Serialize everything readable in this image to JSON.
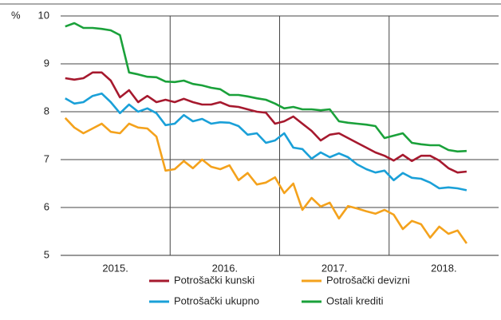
{
  "chart_data": {
    "type": "line",
    "y_unit": "%",
    "xlim": [
      2015,
      2019
    ],
    "xticks": [
      {
        "value": 2015.5,
        "label": "2015."
      },
      {
        "value": 2016.5,
        "label": "2016."
      },
      {
        "value": 2017.5,
        "label": "2017."
      },
      {
        "value": 2018.5,
        "label": "2018."
      }
    ],
    "xgrid": [
      2016,
      2017,
      2018
    ],
    "ylim": [
      5,
      10
    ],
    "yticks": [
      5,
      6,
      7,
      8,
      9,
      10
    ],
    "grid": true,
    "x": [
      2015.042,
      2015.125,
      2015.208,
      2015.292,
      2015.375,
      2015.458,
      2015.542,
      2015.625,
      2015.708,
      2015.792,
      2015.875,
      2015.958,
      2016.042,
      2016.125,
      2016.208,
      2016.292,
      2016.375,
      2016.458,
      2016.542,
      2016.625,
      2016.708,
      2016.792,
      2016.875,
      2016.958,
      2017.042,
      2017.125,
      2017.208,
      2017.292,
      2017.375,
      2017.458,
      2017.542,
      2017.625,
      2017.708,
      2017.792,
      2017.875,
      2017.958,
      2018.042,
      2018.125,
      2018.208,
      2018.292,
      2018.375,
      2018.458,
      2018.542,
      2018.625,
      2018.708
    ],
    "series": [
      {
        "name": "Potrošački kunski",
        "color": "#a6192e",
        "values": [
          8.7,
          8.67,
          8.7,
          8.82,
          8.82,
          8.65,
          8.3,
          8.45,
          8.2,
          8.33,
          8.2,
          8.25,
          8.2,
          8.27,
          8.2,
          8.15,
          8.15,
          8.2,
          8.12,
          8.1,
          8.05,
          8.0,
          7.98,
          7.75,
          7.8,
          7.9,
          7.75,
          7.6,
          7.4,
          7.52,
          7.55,
          7.45,
          7.35,
          7.25,
          7.15,
          7.08,
          6.98,
          7.1,
          6.97,
          7.08,
          7.08,
          6.98,
          6.82,
          6.73,
          6.75
        ]
      },
      {
        "name": "Potrošački devizni",
        "color": "#f4a21c",
        "values": [
          7.87,
          7.67,
          7.55,
          7.65,
          7.75,
          7.58,
          7.55,
          7.75,
          7.67,
          7.65,
          7.48,
          6.77,
          6.8,
          6.97,
          6.82,
          7.0,
          6.85,
          6.8,
          6.88,
          6.57,
          6.72,
          6.48,
          6.52,
          6.63,
          6.3,
          6.5,
          5.95,
          6.2,
          6.02,
          6.1,
          5.77,
          6.03,
          5.98,
          5.92,
          5.87,
          5.95,
          5.85,
          5.55,
          5.72,
          5.65,
          5.37,
          5.6,
          5.45,
          5.52,
          5.25
        ]
      },
      {
        "name": "Potrošački ukupno",
        "color": "#1aa0d8",
        "values": [
          8.28,
          8.17,
          8.2,
          8.33,
          8.38,
          8.2,
          7.97,
          8.15,
          8.0,
          8.07,
          7.97,
          7.72,
          7.75,
          7.93,
          7.8,
          7.85,
          7.75,
          7.78,
          7.77,
          7.7,
          7.52,
          7.55,
          7.35,
          7.4,
          7.55,
          7.25,
          7.22,
          7.02,
          7.15,
          7.05,
          7.13,
          7.05,
          6.9,
          6.8,
          6.73,
          6.77,
          6.57,
          6.72,
          6.62,
          6.6,
          6.52,
          6.4,
          6.42,
          6.4,
          6.36
        ]
      },
      {
        "name": "Ostali krediti",
        "color": "#1aa13a",
        "values": [
          9.78,
          9.85,
          9.75,
          9.75,
          9.73,
          9.7,
          9.6,
          8.82,
          8.78,
          8.73,
          8.72,
          8.63,
          8.62,
          8.65,
          8.58,
          8.55,
          8.5,
          8.47,
          8.35,
          8.35,
          8.32,
          8.28,
          8.25,
          8.17,
          8.07,
          8.1,
          8.05,
          8.05,
          8.03,
          8.05,
          7.8,
          7.77,
          7.75,
          7.73,
          7.7,
          7.45,
          7.5,
          7.55,
          7.35,
          7.32,
          7.3,
          7.3,
          7.2,
          7.17,
          7.18
        ]
      }
    ]
  }
}
